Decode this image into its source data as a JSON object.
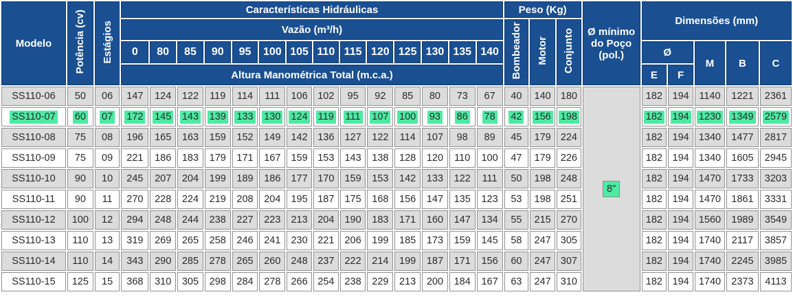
{
  "headers": {
    "modelo": "Modelo",
    "potencia": "Potência (cv)",
    "estagios": "Estágios",
    "caracteristicas": "Características Hidráulicas",
    "vazao": "Vazão (m³/h)",
    "altura": "Altura Manométrica Total (m.c.a.)",
    "peso": "Peso (Kg)",
    "bombeador": "Bombeador",
    "motor": "Motor",
    "conjunto": "Conjunto",
    "poco": "Ø mínimo do Poço (pol.)",
    "dimensoes": "Dimensões (mm)",
    "diam": "Ø",
    "e": "E",
    "f": "F",
    "m": "M",
    "b": "B",
    "c": "C"
  },
  "flows": [
    "0",
    "80",
    "85",
    "90",
    "95",
    "100",
    "105",
    "110",
    "115",
    "120",
    "125",
    "130",
    "135",
    "140"
  ],
  "poco_value": "8\"",
  "rows": [
    {
      "model": "SS110-06",
      "pot": "50",
      "est": "06",
      "h": [
        "147",
        "124",
        "122",
        "119",
        "114",
        "111",
        "106",
        "102",
        "95",
        "92",
        "85",
        "80",
        "73",
        "67"
      ],
      "bomb": "40",
      "motor": "140",
      "conj": "180",
      "e": "182",
      "f": "194",
      "m": "1140",
      "b": "1221",
      "c": "2361",
      "highlight": false
    },
    {
      "model": "SS110-07",
      "pot": "60",
      "est": "07",
      "h": [
        "172",
        "145",
        "143",
        "139",
        "133",
        "130",
        "124",
        "119",
        "111",
        "107",
        "100",
        "93",
        "86",
        "78"
      ],
      "bomb": "42",
      "motor": "156",
      "conj": "198",
      "e": "182",
      "f": "194",
      "m": "1230",
      "b": "1349",
      "c": "2579",
      "highlight": true
    },
    {
      "model": "SS110-08",
      "pot": "75",
      "est": "08",
      "h": [
        "196",
        "165",
        "163",
        "159",
        "152",
        "149",
        "142",
        "136",
        "127",
        "122",
        "114",
        "107",
        "98",
        "89"
      ],
      "bomb": "45",
      "motor": "179",
      "conj": "224",
      "e": "182",
      "f": "194",
      "m": "1340",
      "b": "1477",
      "c": "2817",
      "highlight": false
    },
    {
      "model": "SS110-09",
      "pot": "75",
      "est": "09",
      "h": [
        "221",
        "186",
        "183",
        "179",
        "171",
        "167",
        "159",
        "153",
        "143",
        "138",
        "128",
        "120",
        "110",
        "100"
      ],
      "bomb": "47",
      "motor": "179",
      "conj": "226",
      "e": "182",
      "f": "194",
      "m": "1340",
      "b": "1605",
      "c": "2945",
      "highlight": false
    },
    {
      "model": "SS110-10",
      "pot": "90",
      "est": "10",
      "h": [
        "245",
        "207",
        "204",
        "199",
        "189",
        "186",
        "177",
        "170",
        "159",
        "153",
        "142",
        "133",
        "122",
        "111"
      ],
      "bomb": "50",
      "motor": "198",
      "conj": "248",
      "e": "182",
      "f": "194",
      "m": "1470",
      "b": "1733",
      "c": "3203",
      "highlight": false
    },
    {
      "model": "SS110-11",
      "pot": "90",
      "est": "11",
      "h": [
        "270",
        "228",
        "224",
        "219",
        "208",
        "204",
        "195",
        "187",
        "175",
        "168",
        "156",
        "147",
        "135",
        "123"
      ],
      "bomb": "53",
      "motor": "198",
      "conj": "251",
      "e": "182",
      "f": "194",
      "m": "1470",
      "b": "1861",
      "c": "3331",
      "highlight": false
    },
    {
      "model": "SS110-12",
      "pot": "100",
      "est": "12",
      "h": [
        "294",
        "248",
        "244",
        "238",
        "227",
        "223",
        "213",
        "204",
        "190",
        "183",
        "171",
        "160",
        "147",
        "134"
      ],
      "bomb": "55",
      "motor": "215",
      "conj": "270",
      "e": "182",
      "f": "194",
      "m": "1560",
      "b": "1989",
      "c": "3549",
      "highlight": false
    },
    {
      "model": "SS110-13",
      "pot": "110",
      "est": "13",
      "h": [
        "319",
        "269",
        "265",
        "258",
        "246",
        "241",
        "230",
        "221",
        "206",
        "199",
        "185",
        "173",
        "159",
        "145"
      ],
      "bomb": "58",
      "motor": "247",
      "conj": "305",
      "e": "182",
      "f": "194",
      "m": "1740",
      "b": "2117",
      "c": "3857",
      "highlight": false
    },
    {
      "model": "SS110-14",
      "pot": "110",
      "est": "14",
      "h": [
        "343",
        "290",
        "285",
        "278",
        "265",
        "260",
        "248",
        "237",
        "222",
        "214",
        "199",
        "187",
        "171",
        "156"
      ],
      "bomb": "60",
      "motor": "247",
      "conj": "307",
      "e": "182",
      "f": "194",
      "m": "1740",
      "b": "2245",
      "c": "3985",
      "highlight": false
    },
    {
      "model": "SS110-15",
      "pot": "125",
      "est": "15",
      "h": [
        "368",
        "310",
        "305",
        "298",
        "284",
        "278",
        "266",
        "254",
        "238",
        "229",
        "213",
        "200",
        "184",
        "167"
      ],
      "bomb": "63",
      "motor": "247",
      "conj": "310",
      "e": "182",
      "f": "194",
      "m": "1740",
      "b": "2373",
      "c": "4113",
      "highlight": false
    }
  ]
}
